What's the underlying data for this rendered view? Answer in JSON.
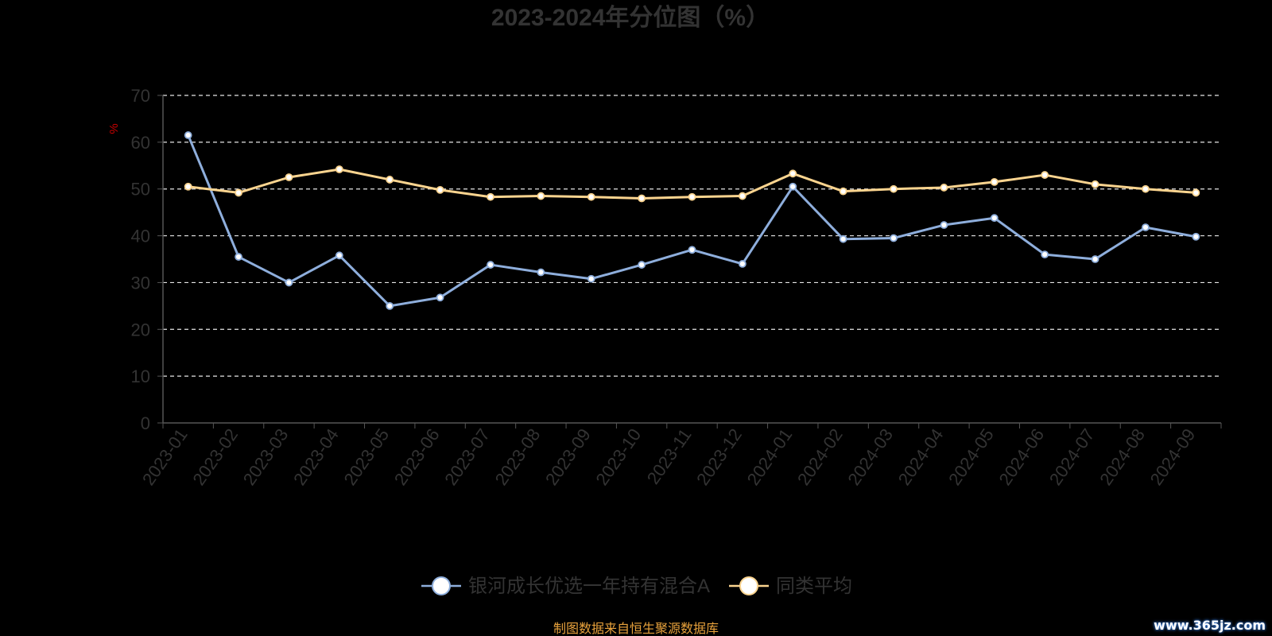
{
  "chart_data": {
    "type": "line",
    "title": "2023-2024年分位图（%）",
    "ylabel": "%",
    "ylim": [
      0,
      70
    ],
    "yticks": [
      0,
      10,
      20,
      30,
      40,
      50,
      60,
      70
    ],
    "grid": true,
    "legend_position": "bottom",
    "categories": [
      "2023-01",
      "2023-02",
      "2023-03",
      "2023-04",
      "2023-05",
      "2023-06",
      "2023-07",
      "2023-08",
      "2023-09",
      "2023-10",
      "2023-11",
      "2023-12",
      "2024-01",
      "2024-02",
      "2024-03",
      "2024-04",
      "2024-05",
      "2024-06",
      "2024-07",
      "2024-08",
      "2024-09"
    ],
    "series": [
      {
        "name": "银河成长优选一年持有混合A",
        "color": "#8eaedc",
        "values": [
          61.5,
          35.5,
          30.0,
          35.8,
          25.0,
          26.8,
          33.8,
          32.2,
          30.8,
          33.8,
          37.0,
          34.0,
          50.5,
          39.3,
          39.5,
          42.3,
          43.8,
          36.0,
          35.0,
          41.8,
          39.8
        ]
      },
      {
        "name": "同类平均",
        "color": "#fbd48f",
        "values": [
          50.5,
          49.2,
          52.5,
          54.2,
          52.0,
          49.8,
          48.3,
          48.5,
          48.3,
          48.0,
          48.3,
          48.5,
          53.3,
          49.5,
          50.0,
          50.3,
          51.5,
          53.0,
          51.0,
          50.0,
          49.2
        ]
      }
    ],
    "source_note": "制图数据来自恒生聚源数据库"
  },
  "watermark": "www.365jz.com"
}
